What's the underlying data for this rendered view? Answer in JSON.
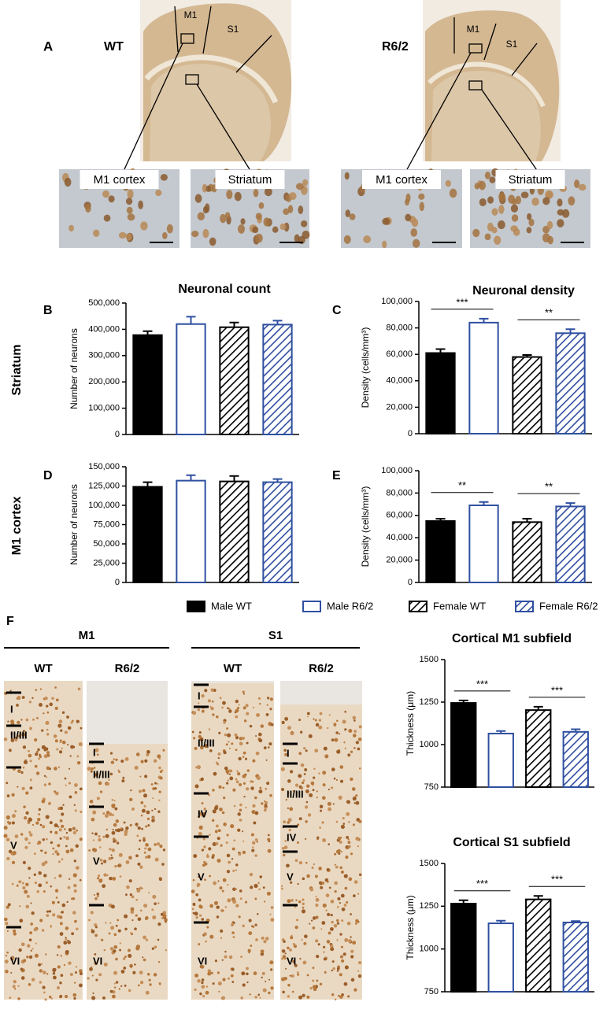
{
  "figure": {
    "panel_a": {
      "letter": "A",
      "groups": [
        {
          "label": "WT",
          "regions": [
            "M1",
            "S1"
          ],
          "insets": [
            "M1 cortex",
            "Striatum"
          ]
        },
        {
          "label": "R6/2",
          "regions": [
            "M1",
            "S1"
          ],
          "insets": [
            "M1 cortex",
            "Striatum"
          ]
        }
      ]
    },
    "panel_letters": [
      "B",
      "C",
      "D",
      "E"
    ],
    "column_titles": [
      "Neuronal count",
      "Neuronal density"
    ],
    "row_titles": [
      "Striatum",
      "M1 cortex"
    ],
    "panel_f": {
      "letter": "F",
      "regions": [
        {
          "label": "M1",
          "columns": [
            {
              "label": "WT",
              "layers": [
                "I",
                "II/III",
                "V",
                "VI"
              ]
            },
            {
              "label": "R6/2",
              "layers": [
                "I",
                "II/III",
                "V",
                "VI"
              ]
            }
          ]
        },
        {
          "label": "S1",
          "columns": [
            {
              "label": "WT",
              "layers": [
                "I",
                "II/III",
                "IV",
                "V",
                "VI"
              ]
            },
            {
              "label": "R6/2",
              "layers": [
                "I",
                "II/III",
                "IV",
                "V",
                "VI"
              ]
            }
          ]
        }
      ]
    }
  },
  "legend": [
    {
      "name": "Male WT",
      "color": "#000000",
      "filled": true,
      "hatch": false
    },
    {
      "name": "Male R6/2",
      "color": "#2f4fa0",
      "filled": false,
      "hatch": false
    },
    {
      "name": "Female WT",
      "color": "#000000",
      "filled": false,
      "hatch": true
    },
    {
      "name": "Female R6/2",
      "color": "#2f4fa0",
      "filled": false,
      "hatch": true
    }
  ],
  "chart_data": [
    {
      "type": "bar",
      "ylabel": "Number of neurons",
      "values": [
        378000,
        420000,
        408000,
        418000
      ],
      "errors": [
        15000,
        28000,
        18000,
        15000
      ],
      "ylim": [
        0,
        500000
      ],
      "yticks": [
        0,
        {
          "value": 100000,
          "label": "100,000"
        },
        {
          "value": 200000,
          "label": "200,000"
        },
        {
          "value": 300000,
          "label": "300,000"
        },
        {
          "value": 400000,
          "label": "400,000"
        },
        {
          "value": 500000,
          "label": "500,000"
        }
      ]
    },
    {
      "type": "bar",
      "ylabel": "Density (cells/mm³)",
      "values": [
        61000,
        84000,
        58000,
        76000
      ],
      "errors": [
        3000,
        3000,
        1500,
        3000
      ],
      "ylim": [
        0,
        100000
      ],
      "yticks": [
        0,
        {
          "value": 20000,
          "label": "20,000"
        },
        {
          "value": 40000,
          "label": "40,000"
        },
        {
          "value": 60000,
          "label": "60,000"
        },
        {
          "value": 80000,
          "label": "80,000"
        },
        {
          "value": 100000,
          "label": "100,000"
        }
      ],
      "annotations": [
        "***",
        "**"
      ]
    },
    {
      "type": "bar",
      "ylabel": "Number of neurons",
      "values": [
        124000,
        132000,
        131000,
        130000
      ],
      "errors": [
        6000,
        7000,
        7000,
        4000
      ],
      "ylim": [
        0,
        150000
      ],
      "yticks": [
        0,
        {
          "value": 25000,
          "label": "25,000"
        },
        {
          "value": 50000,
          "label": "50,000"
        },
        {
          "value": 75000,
          "label": "75,000"
        },
        {
          "value": 100000,
          "label": "100,000"
        },
        {
          "value": 125000,
          "label": "125,000"
        },
        {
          "value": 150000,
          "label": "150,000"
        }
      ]
    },
    {
      "type": "bar",
      "ylabel": "Density (cells/mm³)",
      "values": [
        55000,
        69000,
        54000,
        68000
      ],
      "errors": [
        2000,
        3000,
        3000,
        3000
      ],
      "ylim": [
        0,
        100000
      ],
      "yticks": [
        0,
        {
          "value": 20000,
          "label": "20,000"
        },
        {
          "value": 40000,
          "label": "40,000"
        },
        {
          "value": 60000,
          "label": "60,000"
        },
        {
          "value": 80000,
          "label": "80,000"
        },
        {
          "value": 100000,
          "label": "100,000"
        }
      ],
      "annotations": [
        "**",
        "**"
      ]
    },
    {
      "type": "bar",
      "title": "Cortical M1 subfield",
      "ylabel": "Thickness (μm)",
      "values": [
        1245,
        1065,
        1203,
        1075
      ],
      "errors": [
        15,
        15,
        20,
        15
      ],
      "ylim": [
        750,
        1500
      ],
      "yticks": [
        750,
        1000,
        1250,
        1500
      ],
      "annotations": [
        "***",
        "***"
      ]
    },
    {
      "type": "bar",
      "title": "Cortical S1 subfield",
      "ylabel": "Thickness (μm)",
      "values": [
        1265,
        1150,
        1290,
        1155
      ],
      "errors": [
        20,
        15,
        20,
        8
      ],
      "ylim": [
        750,
        1500
      ],
      "yticks": [
        750,
        1000,
        1250,
        1500
      ],
      "annotations": [
        "***",
        "***"
      ]
    }
  ]
}
